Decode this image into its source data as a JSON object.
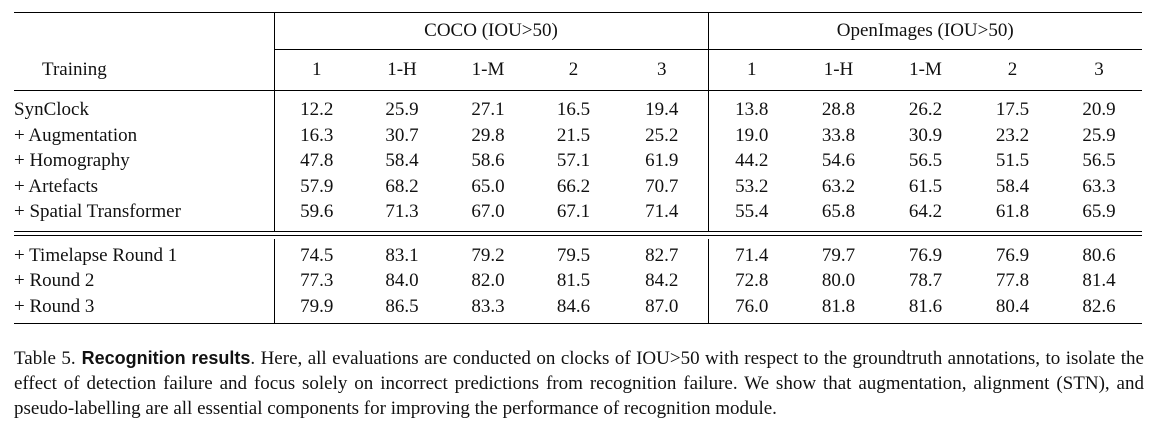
{
  "table": {
    "group_headers": {
      "coco": "COCO (IOU>50)",
      "openimages": "OpenImages (IOU>50)"
    },
    "training_label": "Training",
    "columns": [
      "1",
      "1-H",
      "1-M",
      "2",
      "3",
      "1",
      "1-H",
      "1-M",
      "2",
      "3"
    ],
    "block1": [
      {
        "label": "SynClock",
        "values": [
          "12.2",
          "25.9",
          "27.1",
          "16.5",
          "19.4",
          "13.8",
          "28.8",
          "26.2",
          "17.5",
          "20.9"
        ]
      },
      {
        "label": "+ Augmentation",
        "values": [
          "16.3",
          "30.7",
          "29.8",
          "21.5",
          "25.2",
          "19.0",
          "33.8",
          "30.9",
          "23.2",
          "25.9"
        ]
      },
      {
        "label": "+ Homography",
        "values": [
          "47.8",
          "58.4",
          "58.6",
          "57.1",
          "61.9",
          "44.2",
          "54.6",
          "56.5",
          "51.5",
          "56.5"
        ]
      },
      {
        "label": "+ Artefacts",
        "values": [
          "57.9",
          "68.2",
          "65.0",
          "66.2",
          "70.7",
          "53.2",
          "63.2",
          "61.5",
          "58.4",
          "63.3"
        ]
      },
      {
        "label": "+ Spatial Transformer",
        "values": [
          "59.6",
          "71.3",
          "67.0",
          "67.1",
          "71.4",
          "55.4",
          "65.8",
          "64.2",
          "61.8",
          "65.9"
        ]
      }
    ],
    "block2": [
      {
        "label": "+ Timelapse Round 1",
        "values": [
          "74.5",
          "83.1",
          "79.2",
          "79.5",
          "82.7",
          "71.4",
          "79.7",
          "76.9",
          "76.9",
          "80.6"
        ]
      },
      {
        "label": "+ Round 2",
        "values": [
          "77.3",
          "84.0",
          "82.0",
          "81.5",
          "84.2",
          "72.8",
          "80.0",
          "78.7",
          "77.8",
          "81.4"
        ]
      },
      {
        "label": "+ Round 3",
        "values": [
          "79.9",
          "86.5",
          "83.3",
          "84.6",
          "87.0",
          "76.0",
          "81.8",
          "81.6",
          "80.4",
          "82.6"
        ]
      }
    ]
  },
  "caption": {
    "number": "Table 5.",
    "bold": "Recognition results",
    "text": ". Here, all evaluations are conducted on clocks of IOU>50 with respect to the groundtruth annotations, to isolate the effect of detection failure and focus solely on incorrect predictions from recognition failure. We show that augmentation, alignment (STN), and pseudo-labelling are all essential components for improving the performance of recognition module."
  }
}
